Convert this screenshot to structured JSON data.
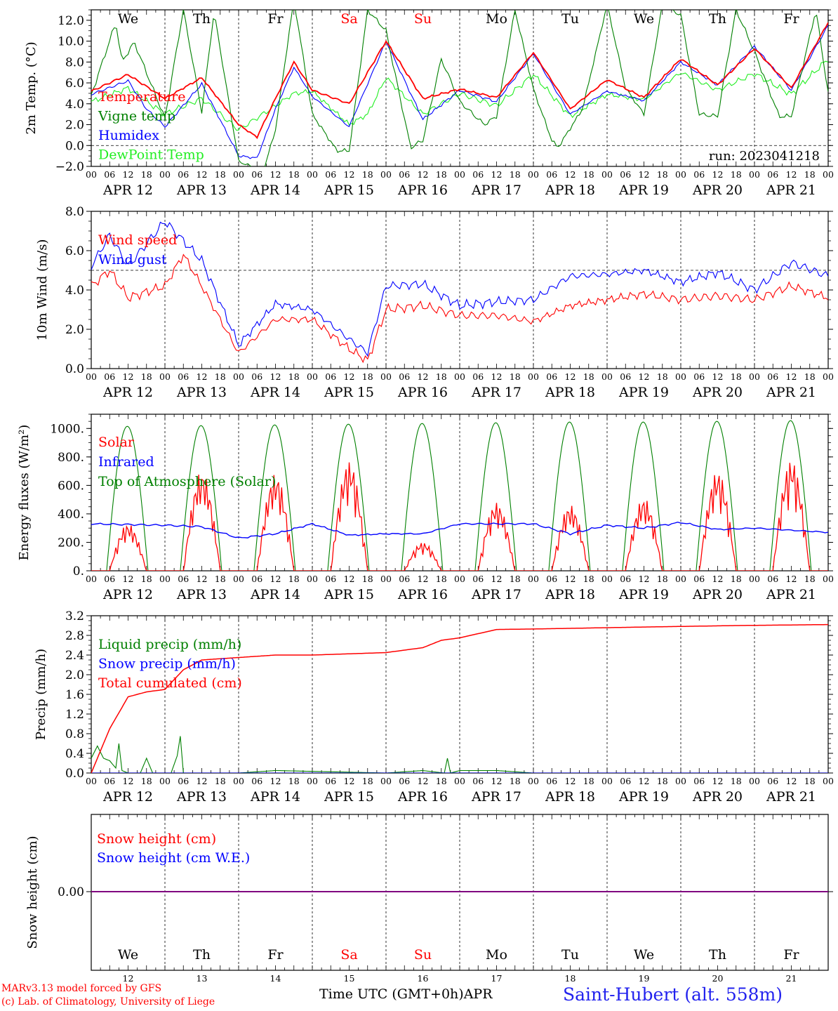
{
  "run_label": "run: 2023041218",
  "bottom": {
    "xlabel": "Time UTC (GMT+0h)",
    "month": "APR",
    "credit_line1": "MARv3.13 model forced by GFS",
    "credit_line2": "(c) Lab. of Climatology, University of Liege",
    "station": "Saint-Hubert (alt. 558m)",
    "day_numbers": [
      "12",
      "13",
      "14",
      "15",
      "16",
      "17",
      "18",
      "19",
      "20",
      "21"
    ]
  },
  "days": {
    "weekday_labels": [
      "We",
      "Th",
      "Fr",
      "Sa",
      "Su",
      "Mo",
      "Tu",
      "We",
      "Th",
      "Fr"
    ],
    "weekend_flags": [
      false,
      false,
      false,
      true,
      true,
      false,
      false,
      false,
      false,
      false
    ],
    "date_labels": [
      "APR 12",
      "APR 13",
      "APR 14",
      "APR 15",
      "APR 16",
      "APR 17",
      "APR 18",
      "APR 19",
      "APR 20",
      "APR 21"
    ],
    "hour_ticks": [
      "00",
      "06",
      "12",
      "18"
    ],
    "end_tick": "00"
  },
  "colors": {
    "red": "#ff0000",
    "green": "#008000",
    "blue": "#0000ff",
    "lightgreen": "#22ee22",
    "purple": "#800080",
    "station_blue": "#2222ee"
  },
  "chart_data": [
    {
      "type": "line",
      "ylabel": "2m Temp. (°C)",
      "ylim": [
        -2,
        13
      ],
      "yticks": [
        -2,
        0,
        2,
        4,
        6,
        8,
        10,
        12
      ],
      "ytick_labels": [
        "−2.0",
        "0.0",
        "2.0",
        "4.0",
        "6.0",
        "8.0",
        "10.0",
        "12.0"
      ],
      "hline": 0,
      "x_unit": "hours since APR 12 00 UTC",
      "series": [
        {
          "name": "Temperature",
          "color": "#ff0000",
          "x": [
            0,
            12,
            24,
            36,
            48,
            54,
            60,
            66,
            72,
            84,
            96,
            108,
            120,
            132,
            144,
            156,
            168,
            180,
            192,
            204,
            216,
            228,
            240
          ],
          "values": [
            5.2,
            6.8,
            4.5,
            6.5,
            2.0,
            0.8,
            4.5,
            8.0,
            5.3,
            4.0,
            10.0,
            4.5,
            5.4,
            4.6,
            8.9,
            3.5,
            6.3,
            4.6,
            8.3,
            5.8,
            9.3,
            5.5,
            11.8
          ]
        },
        {
          "name": "Vigne temp",
          "color": "#008000",
          "x": [
            0,
            8,
            10,
            14,
            24,
            30,
            36,
            40,
            48,
            56,
            60,
            66,
            72,
            80,
            84,
            90,
            96,
            104,
            108,
            114,
            120,
            128,
            132,
            138,
            144,
            150,
            152,
            160,
            168,
            174,
            180,
            186,
            192,
            198,
            204,
            210,
            216,
            224,
            228,
            236,
            240
          ],
          "values": [
            4.8,
            11.8,
            8.0,
            9.9,
            2.6,
            13.0,
            3.2,
            12.8,
            -1.5,
            -2.5,
            1.5,
            14.0,
            3.0,
            -0.5,
            -0.5,
            13.0,
            11.0,
            -0.2,
            0.5,
            8.3,
            4.2,
            2.0,
            2.8,
            13.0,
            5.4,
            0.5,
            -0.2,
            3.5,
            13.5,
            5.5,
            3.0,
            13.5,
            12.5,
            3.0,
            2.8,
            13.0,
            9.0,
            2.8,
            2.8,
            13.0,
            5.0
          ]
        },
        {
          "name": "Humidex",
          "color": "#0000ff",
          "x": [
            0,
            12,
            18,
            24,
            36,
            48,
            54,
            60,
            66,
            72,
            84,
            96,
            108,
            120,
            132,
            144,
            156,
            168,
            180,
            192,
            204,
            216,
            228,
            240
          ],
          "values": [
            4.9,
            6.2,
            3.5,
            1.8,
            5.9,
            -1.0,
            -1.2,
            3.5,
            7.5,
            4.7,
            1.8,
            10.0,
            2.5,
            5.3,
            4.2,
            8.8,
            3.0,
            5.2,
            4.3,
            8.0,
            5.8,
            9.5,
            5.3,
            11.5
          ]
        },
        {
          "name": "DewPoint Temp",
          "color": "#22ee22",
          "x": [
            0,
            12,
            24,
            36,
            48,
            60,
            66,
            72,
            84,
            90,
            96,
            108,
            120,
            132,
            144,
            156,
            168,
            180,
            192,
            204,
            216,
            228,
            240
          ],
          "values": [
            4.2,
            5.5,
            3.0,
            4.5,
            1.5,
            3.8,
            5.0,
            5.2,
            2.0,
            3.0,
            6.5,
            3.0,
            5.0,
            3.8,
            6.8,
            2.8,
            4.9,
            4.4,
            7.0,
            5.3,
            6.9,
            4.9,
            8.3
          ]
        }
      ]
    },
    {
      "type": "line",
      "ylabel": "10m Wind (m/s)",
      "ylim": [
        0,
        8
      ],
      "yticks": [
        0,
        2,
        4,
        6,
        8
      ],
      "ytick_labels": [
        "0.0",
        "2.0",
        "4.0",
        "6.0",
        "8.0"
      ],
      "hline": 5,
      "x_unit": "hours since APR 12 00 UTC",
      "series": [
        {
          "name": "Wind speed",
          "color": "#ff0000",
          "x": [
            0,
            6,
            12,
            24,
            30,
            36,
            48,
            60,
            72,
            84,
            90,
            96,
            108,
            120,
            132,
            144,
            156,
            168,
            180,
            192,
            204,
            216,
            228,
            240
          ],
          "values": [
            4.2,
            5.0,
            3.6,
            4.2,
            5.8,
            4.2,
            0.8,
            2.5,
            2.5,
            1.0,
            0.4,
            3.0,
            3.2,
            2.7,
            2.7,
            2.4,
            3.2,
            3.5,
            3.8,
            3.5,
            3.7,
            3.5,
            4.2,
            3.6
          ]
        },
        {
          "name": "Wind gust",
          "color": "#0000ff",
          "x": [
            0,
            6,
            12,
            24,
            30,
            36,
            48,
            60,
            72,
            84,
            90,
            96,
            108,
            120,
            132,
            144,
            156,
            168,
            180,
            192,
            204,
            216,
            228,
            240
          ],
          "values": [
            5.2,
            6.8,
            5.2,
            7.5,
            6.5,
            5.5,
            1.2,
            3.3,
            3.0,
            1.5,
            0.8,
            4.2,
            4.3,
            3.2,
            3.4,
            3.5,
            4.7,
            4.8,
            5.0,
            4.4,
            4.9,
            4.0,
            5.4,
            4.7
          ]
        }
      ]
    },
    {
      "type": "line",
      "ylabel": "Energy fluxes (W/m²)",
      "ylim": [
        0,
        1100
      ],
      "yticks": [
        0,
        200,
        400,
        600,
        800,
        1000
      ],
      "ytick_labels": [
        "0.",
        "200.",
        "400.",
        "600.",
        "800.",
        "1000."
      ],
      "x_unit": "hours since APR 12 00 UTC",
      "series": [
        {
          "name": "Solar",
          "color": "#ff0000",
          "day_peaks": [
            330,
            700,
            680,
            770,
            200,
            480,
            460,
            510,
            700,
            780
          ]
        },
        {
          "name": "Infrared",
          "color": "#0000ff",
          "x": [
            0,
            24,
            36,
            48,
            60,
            72,
            84,
            96,
            108,
            120,
            144,
            156,
            168,
            180,
            192,
            204,
            216,
            240
          ],
          "values": [
            330,
            320,
            310,
            230,
            260,
            330,
            250,
            260,
            260,
            330,
            330,
            260,
            320,
            300,
            340,
            290,
            300,
            270
          ]
        },
        {
          "name": "Top of Atmosphere (Solar)",
          "color": "#008000",
          "day_peaks": [
            1015,
            1020,
            1025,
            1030,
            1035,
            1040,
            1045,
            1045,
            1050,
            1055
          ]
        }
      ]
    },
    {
      "type": "line",
      "ylabel": "Precip (mm/h)",
      "ylim": [
        0,
        3.2
      ],
      "yticks": [
        0,
        0.4,
        0.8,
        1.2,
        1.6,
        2.0,
        2.4,
        2.8,
        3.2
      ],
      "ytick_labels": [
        "0.0",
        "0.4",
        "0.8",
        "1.2",
        "1.6",
        "2.0",
        "2.4",
        "2.8",
        "3.2"
      ],
      "x_unit": "hours since APR 12 00 UTC",
      "series": [
        {
          "name": "Liquid precip (mm/h)",
          "color": "#008000",
          "x": [
            0,
            2,
            4,
            6,
            8,
            9,
            10,
            12,
            16,
            18,
            20,
            24,
            26,
            28,
            29,
            30,
            32,
            34,
            48,
            60,
            96,
            108,
            115,
            116,
            117,
            120,
            132,
            144
          ],
          "values": [
            0.3,
            0.55,
            0.3,
            0.25,
            0.1,
            0.6,
            0.05,
            0.0,
            0.0,
            0.3,
            0.0,
            0.0,
            0.0,
            0.35,
            0.75,
            0.0,
            0.0,
            0.0,
            0.0,
            0.05,
            0.0,
            0.05,
            0.0,
            0.3,
            0.0,
            0.05,
            0.05,
            0.0
          ]
        },
        {
          "name": "Snow precip (mm/h)",
          "color": "#0000ff",
          "x": [
            0,
            240
          ],
          "values": [
            0,
            0
          ]
        },
        {
          "name": "Total cumulated (cm)",
          "color": "#ff0000",
          "x": [
            0,
            6,
            12,
            18,
            24,
            30,
            36,
            48,
            60,
            72,
            96,
            108,
            114,
            120,
            132,
            144,
            180,
            210,
            240
          ],
          "values": [
            0.0,
            0.9,
            1.55,
            1.65,
            1.7,
            2.1,
            2.3,
            2.35,
            2.4,
            2.4,
            2.45,
            2.55,
            2.7,
            2.75,
            2.92,
            2.93,
            2.97,
            3.0,
            3.02
          ]
        }
      ]
    },
    {
      "type": "line",
      "ylabel": "Snow height (cm)",
      "ytick_labels": [
        "0.00"
      ],
      "x_unit": "hours since APR 12 00 UTC",
      "series": [
        {
          "name": "Snow height (cm)",
          "color": "#ff0000",
          "x": [
            0,
            240
          ],
          "values": [
            0,
            0
          ]
        },
        {
          "name": "Snow height (cm W.E.)",
          "color": "#0000ff",
          "x": [
            0,
            240
          ],
          "values": [
            0,
            0
          ]
        }
      ]
    }
  ]
}
